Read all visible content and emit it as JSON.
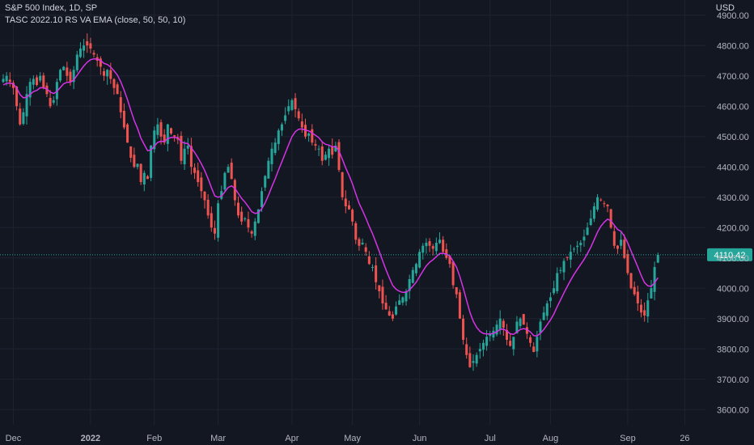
{
  "header": {
    "title": "S&P 500 Index, 1D, SP",
    "indicator": "TASC 2022.10 RS VA EMA (close, 50, 50, 10)",
    "currency": "USD"
  },
  "colors": {
    "background": "#131722",
    "grid": "#1f2331",
    "up": "#26a69a",
    "down": "#ef5350",
    "ema": "#d633e6",
    "price_label": "#26a69a",
    "text": "#b2b5be"
  },
  "chart_data": {
    "type": "candlestick",
    "symbol": "S&P 500 Index",
    "interval": "1D",
    "ylim": [
      3550,
      4950
    ],
    "y_ticks": [
      "3600.00",
      "3700.00",
      "3800.00",
      "3900.00",
      "4000.00",
      "4100.00",
      "4200.00",
      "4300.00",
      "4400.00",
      "4500.00",
      "4600.00",
      "4700.00",
      "4800.00",
      "4900.00"
    ],
    "y_tick_values": [
      3600,
      3700,
      3800,
      3900,
      4000,
      4100,
      4200,
      4300,
      4400,
      4500,
      4600,
      4700,
      4800,
      4900
    ],
    "x_ticks": [
      {
        "label": "Dec",
        "index": 3
      },
      {
        "label": "2022",
        "index": 26
      },
      {
        "label": "Feb",
        "index": 45
      },
      {
        "label": "Mar",
        "index": 64
      },
      {
        "label": "Apr",
        "index": 86
      },
      {
        "label": "May",
        "index": 104
      },
      {
        "label": "Jun",
        "index": 124
      },
      {
        "label": "Jul",
        "index": 145
      },
      {
        "label": "Aug",
        "index": 163
      },
      {
        "label": "Sep",
        "index": 186
      },
      {
        "label": "26",
        "index": 203
      }
    ],
    "last_price": 4110.42,
    "last_price_label": "4110.42",
    "closes": [
      4690,
      4700,
      4680,
      4660,
      4600,
      4540,
      4580,
      4640,
      4680,
      4690,
      4670,
      4700,
      4660,
      4640,
      4600,
      4620,
      4680,
      4720,
      4730,
      4700,
      4680,
      4720,
      4770,
      4790,
      4800,
      4800,
      4790,
      4770,
      4750,
      4730,
      4700,
      4720,
      4690,
      4660,
      4640,
      4580,
      4530,
      4480,
      4430,
      4400,
      4410,
      4350,
      4380,
      4360,
      4470,
      4520,
      4540,
      4500,
      4480,
      4540,
      4510,
      4500,
      4490,
      4420,
      4460,
      4470,
      4400,
      4380,
      4350,
      4320,
      4290,
      4240,
      4200,
      4180,
      4280,
      4320,
      4380,
      4400,
      4360,
      4290,
      4240,
      4220,
      4230,
      4200,
      4180,
      4220,
      4260,
      4320,
      4370,
      4420,
      4460,
      4480,
      4520,
      4540,
      4570,
      4600,
      4620,
      4590,
      4560,
      4530,
      4500,
      4510,
      4480,
      4470,
      4460,
      4420,
      4440,
      4460,
      4440,
      4470,
      4390,
      4300,
      4270,
      4260,
      4220,
      4160,
      4140,
      4150,
      4120,
      4080,
      4070,
      4020,
      3990,
      3950,
      3930,
      3910,
      3900,
      3940,
      3960,
      3970,
      3990,
      4030,
      4060,
      4080,
      4120,
      4140,
      4150,
      4140,
      4130,
      4150,
      4160,
      4120,
      4100,
      4080,
      4010,
      3980,
      3900,
      3830,
      3780,
      3740,
      3760,
      3780,
      3800,
      3820,
      3840,
      3850,
      3860,
      3880,
      3900,
      3870,
      3830,
      3810,
      3840,
      3890,
      3900,
      3880,
      3850,
      3820,
      3790,
      3840,
      3890,
      3920,
      3950,
      3970,
      4000,
      4050,
      4060,
      4090,
      4100,
      4120,
      4130,
      4140,
      4150,
      4170,
      4200,
      4230,
      4270,
      4300,
      4290,
      4280,
      4270,
      4200,
      4140,
      4130,
      4160,
      4100,
      4050,
      4000,
      3980,
      3950,
      3920,
      3910,
      3960,
      4000,
      4070,
      4110
    ]
  }
}
